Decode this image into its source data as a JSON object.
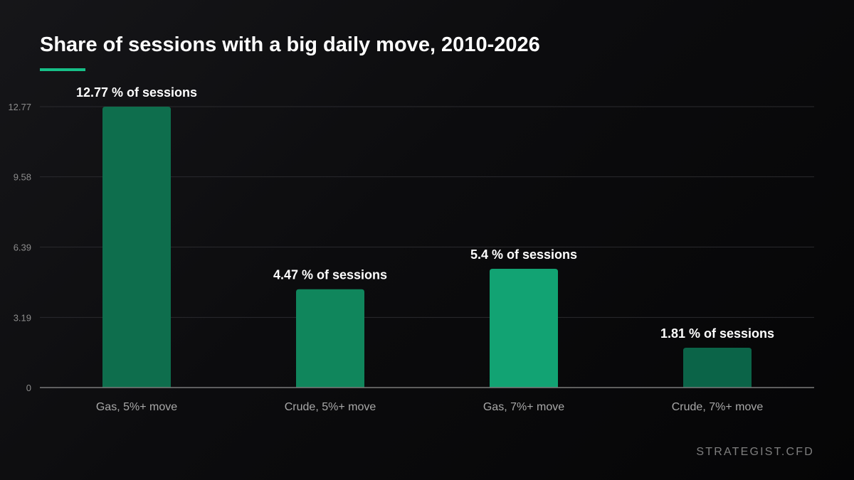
{
  "title": "Share of sessions with a big daily move, 2010-2026",
  "brand": "STRATEGIST.CFD",
  "colors": {
    "accent": "#17c088",
    "bars": [
      "#0e6e4d",
      "#10865c",
      "#12a373",
      "#0b6448"
    ],
    "background": "#0c0c0e"
  },
  "chart_data": {
    "type": "bar",
    "title": "Share of sessions with a big daily move, 2010-2026",
    "xlabel": "",
    "ylabel": "",
    "ylim": [
      0,
      12.77
    ],
    "y_ticks": [
      "0",
      "3.19",
      "6.39",
      "9.58",
      "12.77"
    ],
    "y_tick_values": [
      0,
      3.19,
      6.39,
      9.58,
      12.77
    ],
    "grid": true,
    "legend": "none",
    "categories": [
      "Gas, 5%+ move",
      "Crude, 5%+ move",
      "Gas, 7%+ move",
      "Crude, 7%+ move"
    ],
    "values": [
      12.77,
      4.47,
      5.4,
      1.81
    ],
    "data_labels": [
      "12.77 % of sessions",
      "4.47 % of sessions",
      "5.4 % of sessions",
      "1.81 % of sessions"
    ]
  }
}
